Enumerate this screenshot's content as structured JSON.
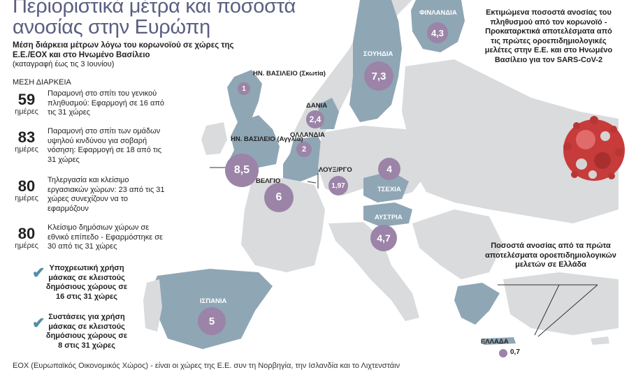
{
  "header": {
    "title_line1": "Περιοριστικά μέτρα και ποσοστά",
    "title_line2": "ανοσίας στην Ευρώπη",
    "subtitle": "Μέση διάρκεια μέτρων λόγω του κορωνοϊού σε χώρες της Ε.Ε./ΕΟΧ και στο Ηνωμένο Βασίλειο",
    "note": "(καταγραφή έως τις 3 Ιουνίου)"
  },
  "duration_heading": "ΜΕΣΗ ΔΙΑΡΚΕΙΑ",
  "days_unit": "ημέρες",
  "measures": [
    {
      "days": "59",
      "text": "Παραμονή στο σπίτι του γενικού πληθυσμού: Εφαρμογή σε 16 από τις 31 χώρες"
    },
    {
      "days": "83",
      "text": "Παραμονή στο σπίτι των ομάδων υψηλού κινδύνου για σοβαρή νόσηση: Εφαρμογή σε 18 από τις 31 χώρες"
    },
    {
      "days": "80",
      "text": "Τηλεργασία και κλείσιμο εργασιακών χώρων: 23 από τις 31 χώρες συνεχίζουν να το εφαρμόζουν"
    },
    {
      "days": "80",
      "text": "Κλείσιμο δημόσιων χώρων σε εθνικό επίπεδο - Εφαρμόστηκε σε 30 από τις 31 χώρες"
    }
  ],
  "masks": [
    {
      "text": "Υποχρεωτική χρήση μάσκας σε κλειστούς δημόσιους χώρους σε 16 στις 31 χώρες"
    },
    {
      "text": "Συστάσεις για χρήση μάσκας σε κλειστούς δημόσιους χώρους σε 8 στις 31 χώρες"
    }
  ],
  "right_note": "Εκτιμώμενα ποσοστά ανοσίας του πληθυσμού από τον κορωνοϊό - Προκαταρκτικά αποτελέσματα από τις πρώτες οροεπιδημιολογικές μελέτες στην Ε.Ε. και στο Ηνωμένο Βασίλειο για τον SARS-CoV-2",
  "greece_note": "Ποσοστά ανοσίας από τα πρώτα αποτελέσματα οροεπιδημιολογικών μελετών σε Ελλάδα",
  "footer": "ΕΟΧ (Ευρωπαϊκός Οικονομικός Χώρος) - είναι οι χώρες της Ε.Ε. συν τη Νορβηγία, την Ισλανδία και το Λιχτενστάιν",
  "countries": {
    "finland": {
      "label": "ΦΙΝΛΑΝΔΙΑ",
      "value": "4,3"
    },
    "sweden": {
      "label": "ΣΟΥΗΔΙΑ",
      "value": "7,3"
    },
    "scotland": {
      "label": "ΗΝ. ΒΑΣΙΛΕΙΟ (Σκωτία)",
      "value": "1"
    },
    "denmark": {
      "label": "ΔΑΝΙΑ",
      "value": "2,4"
    },
    "netherlands": {
      "label": "ΟΛΛΑΝΔΙΑ",
      "value": "2"
    },
    "england": {
      "label": "ΗΝ. ΒΑΣΙΛΕΙΟ (Αγγλία)",
      "value": "8,5"
    },
    "belgium": {
      "label": "ΒΕΛΓΙΟ",
      "value": "6"
    },
    "luxembourg": {
      "label": "ΛΟΥΞ/ΡΓΟ",
      "value": "1,97"
    },
    "czechia": {
      "label": "ΤΣΕΧΙΑ",
      "value": "4"
    },
    "austria": {
      "label": "ΑΥΣΤΡΙΑ",
      "value": "4,7"
    },
    "spain": {
      "label": "ΙΣΠΑΝΙΑ",
      "value": "5"
    },
    "greece": {
      "label": "ΕΛΛΑΔΑ",
      "value": "0,7"
    }
  },
  "colors": {
    "highlight_land": "#8fa6b5",
    "other_land": "#d9dbdd",
    "bubble": "#9b84a8",
    "title": "#5a5f82",
    "check": "#4f8ea6",
    "virus": "#c83b3b"
  }
}
